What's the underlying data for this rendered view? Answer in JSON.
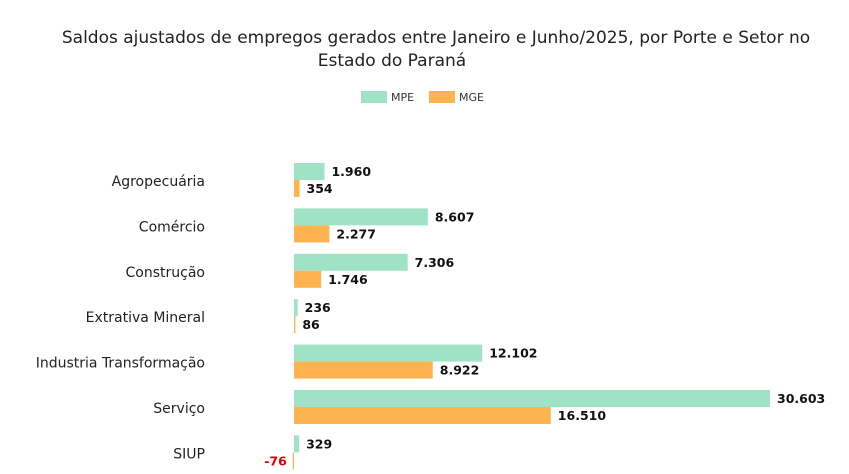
{
  "chart_data": {
    "type": "bar",
    "orientation": "horizontal",
    "title": "Saldos ajustados de empregos gerados entre Janeiro e Junho/2025, por Porte e Setor no Estado do Paraná",
    "title_lines": [
      "Saldos ajustados de empregos gerados entre Janeiro e Junho/2025, por Porte e Setor no",
      "Estado do Paraná"
    ],
    "legend_position": "top-center",
    "grid": false,
    "categories": [
      "Agropecuária",
      "Comércio",
      "Construção",
      "Extrativa Mineral",
      "Industria Transformação",
      "Serviço",
      "SIUP"
    ],
    "series": [
      {
        "name": "MPE",
        "color": "#9fe2c6",
        "values": [
          1960,
          8607,
          7306,
          236,
          12102,
          30603,
          329
        ],
        "labels": [
          "1.960",
          "8.607",
          "7.306",
          "236",
          "12.102",
          "30.603",
          "329"
        ]
      },
      {
        "name": "MGE",
        "color": "#ffb350",
        "values": [
          354,
          2277,
          1746,
          86,
          8922,
          16510,
          -76
        ],
        "labels": [
          "354",
          "2.277",
          "1.746",
          "86",
          "8.922",
          "16.510",
          "-76"
        ]
      }
    ],
    "negative_label_color": "#e00000"
  }
}
